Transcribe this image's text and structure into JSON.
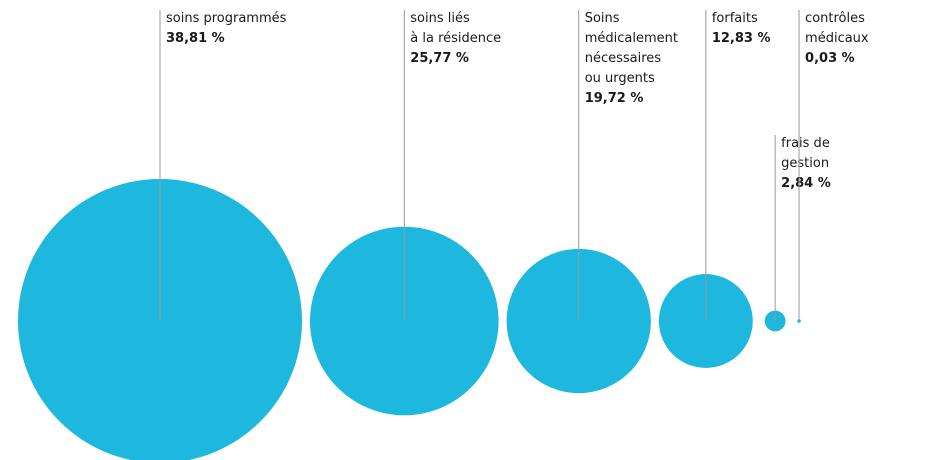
{
  "chart_data": {
    "type": "bubble",
    "categories": [
      "soins programmés",
      "soins liés\nà la résidence",
      "Soins\nmédicalement\nnécessaires\nou urgents",
      "forfaits",
      "frais de\ngestion",
      "contrôles\nmédicaux"
    ],
    "values": [
      38.81,
      25.77,
      19.72,
      12.83,
      2.84,
      0.03
    ],
    "value_labels": [
      "38,81 %",
      "25,77 %",
      "19,72 %",
      "12,83 %",
      "2,84 %",
      "0,03 %"
    ],
    "color": "#1eb8de"
  }
}
